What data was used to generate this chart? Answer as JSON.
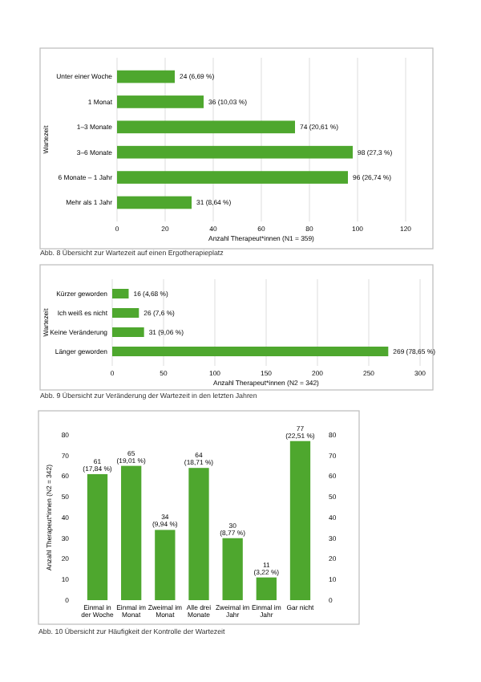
{
  "chart_data": [
    {
      "type": "bar",
      "orientation": "horizontal",
      "categories": [
        "Unter einer Woche",
        "1 Monat",
        "1–3 Monate",
        "3–6 Monate",
        "6 Monate – 1 Jahr",
        "Mehr als 1 Jahr"
      ],
      "values": [
        24,
        36,
        74,
        98,
        96,
        31
      ],
      "value_labels": [
        "24 (6,69 %)",
        "36 (10,03 %)",
        "74 (20,61 %)",
        "98 (27,3 %)",
        "96 (26,74 %)",
        "31 (8,64 %)"
      ],
      "color": "#4ea72e",
      "xlim": [
        0,
        120
      ],
      "xticks": [
        0,
        20,
        40,
        60,
        80,
        100,
        120
      ],
      "xlabel": "Anzahl Therapeut*innen (N1 = 359)",
      "ylabel": "Wartezeit",
      "grid": "x",
      "annotations": [
        "Abb. 8 Übersicht zur Wartezeit auf einen Ergotherapieplatz"
      ]
    },
    {
      "type": "bar",
      "orientation": "horizontal",
      "categories": [
        "Kürzer geworden",
        "Ich weiß es nicht",
        "Keine Veränderung",
        "Länger geworden"
      ],
      "values": [
        16,
        26,
        31,
        269
      ],
      "value_labels": [
        "16 (4,68 %)",
        "26 (7,6 %)",
        "31 (9,06 %)",
        "269 (78,65 %)"
      ],
      "color": "#4ea72e",
      "xlim": [
        0,
        300
      ],
      "xticks": [
        0,
        50,
        100,
        150,
        200,
        250,
        300
      ],
      "xlabel": "Anzahl Therapeut*innen (N2 = 342)",
      "ylabel": "Wartezeit",
      "grid": "x",
      "annotations": [
        "Abb. 9 Übersicht zur Veränderung der Wartezeit in den letzten Jahren"
      ]
    },
    {
      "type": "bar",
      "categories": [
        "Einmal in der Woche",
        "Einmal im Monat",
        "Zweimal im Monat",
        "Alle drei Monate",
        "Zweimal im Jahr",
        "Einmal im Jahr",
        "Gar nicht"
      ],
      "values": [
        61,
        65,
        34,
        64,
        30,
        11,
        77
      ],
      "value_labels": [
        "61 (17,84 %)",
        "65 (19,01 %)",
        "34 (9,94 %)",
        "64 (18,71 %)",
        "30 (8,77 %)",
        "11 (3,22 %)",
        "77 (22,51 %)"
      ],
      "color": "#4ea72e",
      "ylim": [
        0,
        80
      ],
      "yticks": [
        0,
        10,
        20,
        30,
        40,
        50,
        60,
        70,
        80
      ],
      "y2lim": [
        0,
        80
      ],
      "y2ticks": [
        0,
        10,
        20,
        30,
        40,
        50,
        60,
        70,
        80
      ],
      "ylabel": "Anzahl Therapeut*innen (N2 = 342)",
      "annotations": [
        "Abb. 10 Übersicht zur Häufigkeit der Kontrolle der Wartezeit"
      ]
    }
  ]
}
